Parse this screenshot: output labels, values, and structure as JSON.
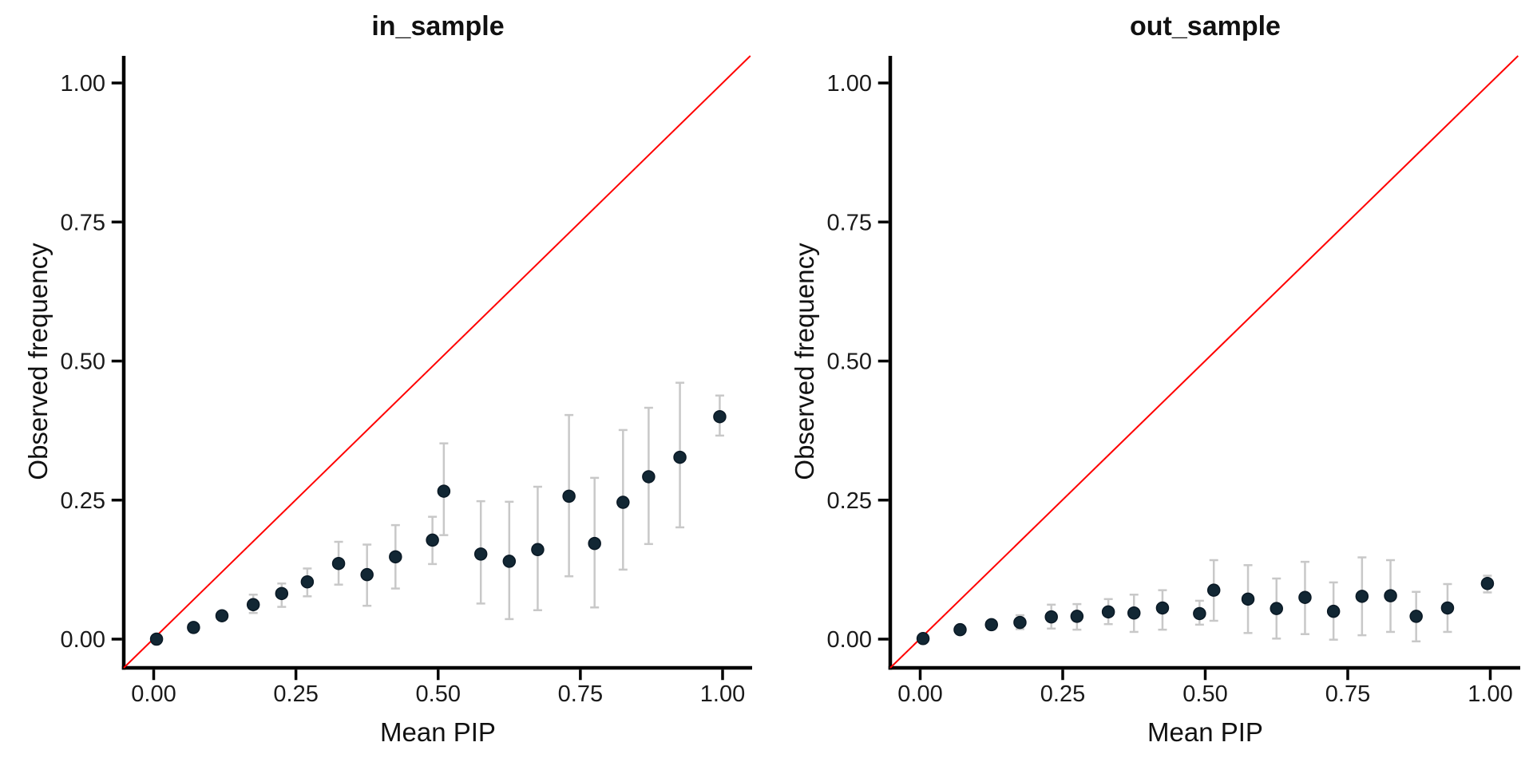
{
  "figure": {
    "background_color": "#ffffff",
    "text_color": "#111111",
    "axis_color": "#000000",
    "tick_label_color": "#1a1a1a"
  },
  "chart_data": [
    {
      "type": "scatter",
      "title": "in_sample",
      "xlabel": "Mean PIP",
      "ylabel": "Observed frequency",
      "xlim": [
        -0.05,
        1.05
      ],
      "ylim": [
        -0.05,
        1.05
      ],
      "grid": false,
      "legend": "none",
      "x_tick_values": [
        0,
        0.25,
        0.5,
        0.75,
        1.0
      ],
      "x_tick_labels": [
        "0.00",
        "0.25",
        "0.50",
        "0.75",
        "1.00"
      ],
      "y_tick_values": [
        0,
        0.25,
        0.5,
        0.75,
        1.0
      ],
      "y_tick_labels": [
        "0.00",
        "0.25",
        "0.50",
        "0.75",
        "1.00"
      ],
      "identity_line": {
        "slope": 1,
        "intercept": 0,
        "color": "#FF0000"
      },
      "point_color": "#122734",
      "errorbar_color": "#C8C8C8",
      "points": [
        {
          "x": 0.005,
          "y": 0.0,
          "lo": null,
          "hi": null
        },
        {
          "x": 0.07,
          "y": 0.021,
          "lo": null,
          "hi": null
        },
        {
          "x": 0.12,
          "y": 0.042,
          "lo": null,
          "hi": null
        },
        {
          "x": 0.175,
          "y": 0.062,
          "lo": 0.047,
          "hi": 0.08
        },
        {
          "x": 0.225,
          "y": 0.082,
          "lo": 0.058,
          "hi": 0.1
        },
        {
          "x": 0.27,
          "y": 0.103,
          "lo": 0.077,
          "hi": 0.127
        },
        {
          "x": 0.325,
          "y": 0.136,
          "lo": 0.098,
          "hi": 0.175
        },
        {
          "x": 0.375,
          "y": 0.116,
          "lo": 0.06,
          "hi": 0.17
        },
        {
          "x": 0.425,
          "y": 0.148,
          "lo": 0.091,
          "hi": 0.205
        },
        {
          "x": 0.49,
          "y": 0.178,
          "lo": 0.135,
          "hi": 0.22
        },
        {
          "x": 0.51,
          "y": 0.266,
          "lo": 0.187,
          "hi": 0.352
        },
        {
          "x": 0.575,
          "y": 0.153,
          "lo": 0.064,
          "hi": 0.248
        },
        {
          "x": 0.625,
          "y": 0.14,
          "lo": 0.036,
          "hi": 0.247
        },
        {
          "x": 0.675,
          "y": 0.161,
          "lo": 0.052,
          "hi": 0.274
        },
        {
          "x": 0.73,
          "y": 0.257,
          "lo": 0.113,
          "hi": 0.403
        },
        {
          "x": 0.775,
          "y": 0.172,
          "lo": 0.057,
          "hi": 0.29
        },
        {
          "x": 0.825,
          "y": 0.246,
          "lo": 0.125,
          "hi": 0.376
        },
        {
          "x": 0.87,
          "y": 0.292,
          "lo": 0.171,
          "hi": 0.416
        },
        {
          "x": 0.925,
          "y": 0.327,
          "lo": 0.201,
          "hi": 0.461
        },
        {
          "x": 0.995,
          "y": 0.4,
          "lo": 0.366,
          "hi": 0.438
        }
      ]
    },
    {
      "type": "scatter",
      "title": "out_sample",
      "xlabel": "Mean PIP",
      "ylabel": "Observed frequency",
      "xlim": [
        -0.05,
        1.05
      ],
      "ylim": [
        -0.05,
        1.05
      ],
      "grid": false,
      "legend": "none",
      "x_tick_values": [
        0,
        0.25,
        0.5,
        0.75,
        1.0
      ],
      "x_tick_labels": [
        "0.00",
        "0.25",
        "0.50",
        "0.75",
        "1.00"
      ],
      "y_tick_values": [
        0,
        0.25,
        0.5,
        0.75,
        1.0
      ],
      "y_tick_labels": [
        "0.00",
        "0.25",
        "0.50",
        "0.75",
        "1.00"
      ],
      "identity_line": {
        "slope": 1,
        "intercept": 0,
        "color": "#FF0000"
      },
      "point_color": "#122734",
      "errorbar_color": "#C8C8C8",
      "points": [
        {
          "x": 0.005,
          "y": 0.001,
          "lo": null,
          "hi": null
        },
        {
          "x": 0.07,
          "y": 0.017,
          "lo": null,
          "hi": null
        },
        {
          "x": 0.125,
          "y": 0.026,
          "lo": null,
          "hi": null
        },
        {
          "x": 0.175,
          "y": 0.03,
          "lo": 0.018,
          "hi": 0.043
        },
        {
          "x": 0.23,
          "y": 0.04,
          "lo": 0.019,
          "hi": 0.062
        },
        {
          "x": 0.275,
          "y": 0.041,
          "lo": 0.017,
          "hi": 0.063
        },
        {
          "x": 0.33,
          "y": 0.049,
          "lo": 0.027,
          "hi": 0.072
        },
        {
          "x": 0.375,
          "y": 0.047,
          "lo": 0.013,
          "hi": 0.08
        },
        {
          "x": 0.425,
          "y": 0.056,
          "lo": 0.017,
          "hi": 0.088
        },
        {
          "x": 0.49,
          "y": 0.046,
          "lo": 0.026,
          "hi": 0.069
        },
        {
          "x": 0.515,
          "y": 0.088,
          "lo": 0.033,
          "hi": 0.142
        },
        {
          "x": 0.575,
          "y": 0.072,
          "lo": 0.011,
          "hi": 0.133
        },
        {
          "x": 0.625,
          "y": 0.055,
          "lo": 0.001,
          "hi": 0.109
        },
        {
          "x": 0.675,
          "y": 0.075,
          "lo": 0.009,
          "hi": 0.139
        },
        {
          "x": 0.725,
          "y": 0.05,
          "lo": -0.001,
          "hi": 0.102
        },
        {
          "x": 0.775,
          "y": 0.077,
          "lo": 0.007,
          "hi": 0.147
        },
        {
          "x": 0.825,
          "y": 0.078,
          "lo": 0.013,
          "hi": 0.142
        },
        {
          "x": 0.87,
          "y": 0.041,
          "lo": -0.004,
          "hi": 0.085
        },
        {
          "x": 0.925,
          "y": 0.056,
          "lo": 0.013,
          "hi": 0.099
        },
        {
          "x": 0.995,
          "y": 0.1,
          "lo": 0.084,
          "hi": 0.114
        }
      ]
    }
  ]
}
